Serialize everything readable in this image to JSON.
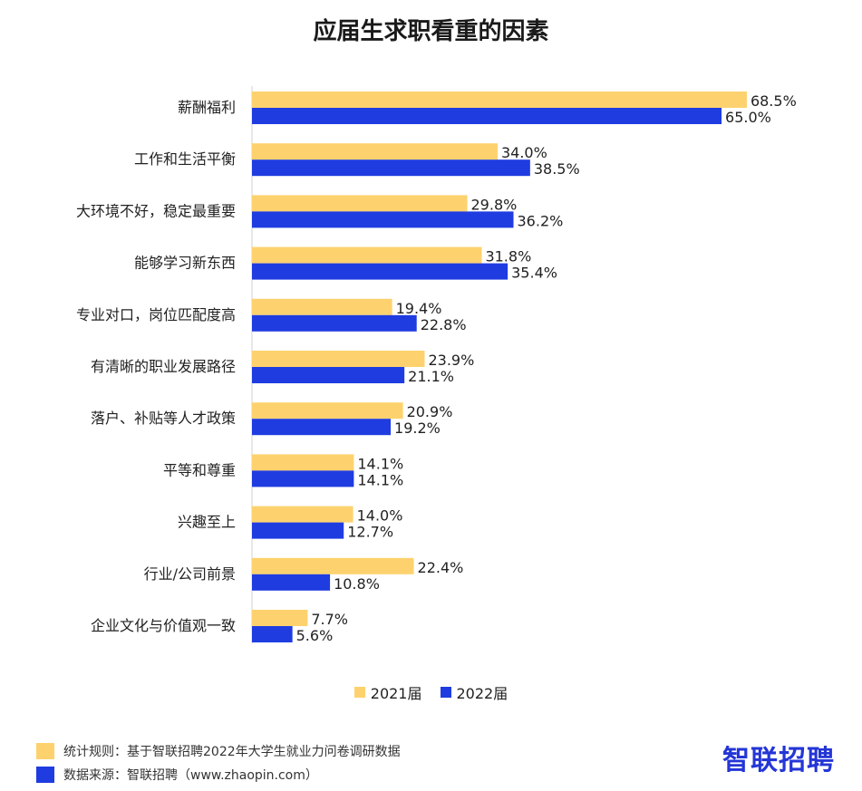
{
  "chart_data": {
    "type": "bar",
    "orientation": "horizontal",
    "title": "应届生求职看重的因素",
    "categories": [
      "薪酬福利",
      "工作和生活平衡",
      "大环境不好，稳定最重要",
      "能够学习新东西",
      "专业对口，岗位匹配度高",
      "有清晰的职业发展路径",
      "落户、补贴等人才政策",
      "平等和尊重",
      "兴趣至上",
      "行业/公司前景",
      "企业文化与价值观一致"
    ],
    "series": [
      {
        "name": "2021届",
        "color": "#fdd26e",
        "values": [
          68.5,
          34.0,
          29.8,
          31.8,
          19.4,
          23.9,
          20.9,
          14.1,
          14.0,
          22.4,
          7.7
        ],
        "labels": [
          "68.5%",
          "34.0%",
          "29.8%",
          "31.8%",
          "19.4%",
          "23.9%",
          "20.9%",
          "14.1%",
          "14.0%",
          "22.4%",
          "7.7%"
        ]
      },
      {
        "name": "2022届",
        "color": "#1f3ce0",
        "values": [
          65.0,
          38.5,
          36.2,
          35.4,
          22.8,
          21.1,
          19.2,
          14.1,
          12.7,
          10.8,
          5.6
        ],
        "labels": [
          "65.0%",
          "38.5%",
          "36.2%",
          "35.4%",
          "22.8%",
          "21.1%",
          "19.2%",
          "14.1%",
          "12.7%",
          "10.8%",
          "5.6%"
        ]
      }
    ],
    "grid": false,
    "legend_position": "bottom"
  },
  "footer": {
    "rule": "统计规则：基于智联招聘2022年大学生就业力问卷调研数据",
    "source": "数据来源：智联招聘（www.zhaopin.com）",
    "rule_color": "#fdd26e",
    "source_color": "#1f3ce0"
  },
  "logo": "智联招聘"
}
